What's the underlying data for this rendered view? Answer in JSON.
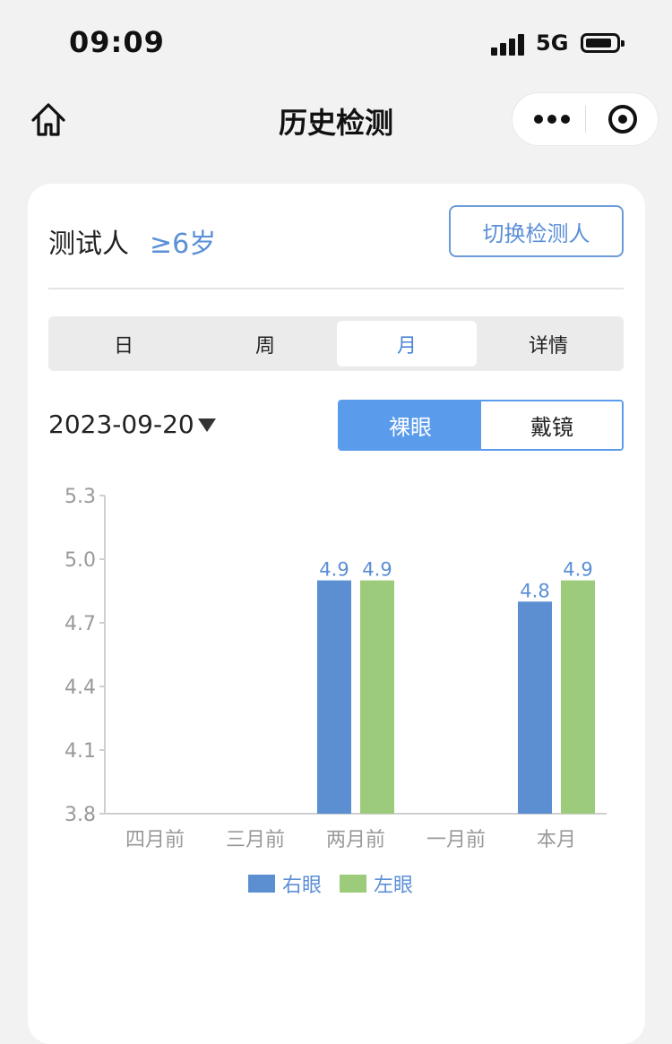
{
  "status_bar": {
    "time": "09:09",
    "network": "5G"
  },
  "nav": {
    "title": "历史检测"
  },
  "tester": {
    "label": "测试人",
    "age": "≥6岁",
    "switch_label": "切换检测人"
  },
  "tabs": [
    {
      "label": "日",
      "active": false
    },
    {
      "label": "周",
      "active": false
    },
    {
      "label": "月",
      "active": true
    },
    {
      "label": "详情",
      "active": false
    }
  ],
  "date": "2023-09-20",
  "eye_toggle": {
    "naked": "裸眼",
    "glasses": "戴镜",
    "selected": "naked"
  },
  "chart_data": {
    "type": "bar",
    "categories": [
      "四月前",
      "三月前",
      "两月前",
      "一月前",
      "本月"
    ],
    "series": [
      {
        "name": "右眼",
        "color": "#5b8fd1",
        "values": [
          null,
          null,
          4.9,
          null,
          4.8
        ],
        "labels": [
          "",
          "",
          "4.9",
          "",
          "4.8"
        ]
      },
      {
        "name": "左眼",
        "color": "#9ccb7c",
        "values": [
          null,
          null,
          4.9,
          null,
          4.9
        ],
        "labels": [
          "",
          "",
          "4.9",
          "",
          "4.9"
        ]
      }
    ],
    "ylim": [
      3.8,
      5.3
    ],
    "yticks": [
      3.8,
      4.1,
      4.4,
      4.7,
      5.0,
      5.3
    ],
    "ytick_labels": [
      "3.8",
      "4.1",
      "4.4",
      "4.7",
      "5.0",
      "5.3"
    ],
    "grid": false,
    "legend": "bottom-center"
  }
}
